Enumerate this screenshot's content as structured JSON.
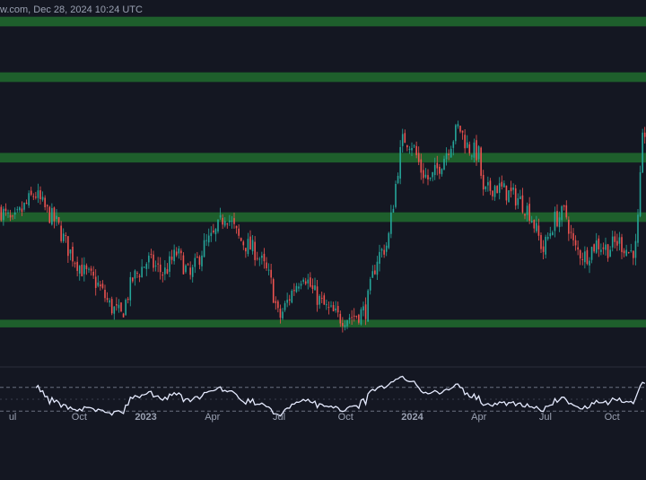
{
  "header": {
    "text": "w.com, Dec 28, 2024 10:24 UTC"
  },
  "colors": {
    "background": "#141722",
    "zone_fill": "#1e5f2c",
    "candle_up": "#26a69a",
    "candle_down": "#ef5350",
    "rsi_line": "#e6ebff",
    "text": "#9aa1b2"
  },
  "chart_data": {
    "type": "candlestick",
    "title": "",
    "xlabel": "",
    "ylabel": "",
    "x_ticks": [
      {
        "label": "ul",
        "month": 7
      },
      {
        "label": "Oct",
        "month": 10
      },
      {
        "label": "2023",
        "month": 13,
        "bold": true
      },
      {
        "label": "Apr",
        "month": 16
      },
      {
        "label": "Jul",
        "month": 19
      },
      {
        "label": "Oct",
        "month": 22
      },
      {
        "label": "2024",
        "month": 25,
        "bold": true
      },
      {
        "label": "Apr",
        "month": 28
      },
      {
        "label": "Jul",
        "month": 31
      },
      {
        "label": "Oct",
        "month": 34
      }
    ],
    "price_path": [
      {
        "m": 6.4,
        "y": 70
      },
      {
        "m": 7.0,
        "y": 62
      },
      {
        "m": 7.6,
        "y": 72
      },
      {
        "m": 8.0,
        "y": 78
      },
      {
        "m": 8.5,
        "y": 69
      },
      {
        "m": 9.0,
        "y": 62
      },
      {
        "m": 9.5,
        "y": 49
      },
      {
        "m": 10.2,
        "y": 37
      },
      {
        "m": 10.8,
        "y": 31
      },
      {
        "m": 11.4,
        "y": 19
      },
      {
        "m": 11.9,
        "y": 14
      },
      {
        "m": 12.4,
        "y": 33
      },
      {
        "m": 13.1,
        "y": 43
      },
      {
        "m": 13.8,
        "y": 36
      },
      {
        "m": 14.4,
        "y": 47
      },
      {
        "m": 15.0,
        "y": 34
      },
      {
        "m": 15.6,
        "y": 50
      },
      {
        "m": 16.1,
        "y": 56
      },
      {
        "m": 16.6,
        "y": 68
      },
      {
        "m": 17.2,
        "y": 54
      },
      {
        "m": 18.0,
        "y": 47
      },
      {
        "m": 18.6,
        "y": 33
      },
      {
        "m": 19.0,
        "y": 12
      },
      {
        "m": 19.6,
        "y": 27
      },
      {
        "m": 20.1,
        "y": 37
      },
      {
        "m": 20.5,
        "y": 27
      },
      {
        "m": 21.1,
        "y": 18
      },
      {
        "m": 21.7,
        "y": 13
      },
      {
        "m": 22.4,
        "y": 14
      },
      {
        "m": 22.9,
        "y": 17
      },
      {
        "m": 23.4,
        "y": 44
      },
      {
        "m": 23.9,
        "y": 52
      },
      {
        "m": 24.4,
        "y": 95
      },
      {
        "m": 24.6,
        "y": 107
      },
      {
        "m": 25.0,
        "y": 104
      },
      {
        "m": 25.4,
        "y": 90
      },
      {
        "m": 25.8,
        "y": 84
      },
      {
        "m": 26.3,
        "y": 94
      },
      {
        "m": 26.8,
        "y": 106
      },
      {
        "m": 27.1,
        "y": 113
      },
      {
        "m": 27.5,
        "y": 102
      },
      {
        "m": 28.0,
        "y": 98
      },
      {
        "m": 28.2,
        "y": 77
      },
      {
        "m": 28.7,
        "y": 82
      },
      {
        "m": 29.3,
        "y": 78
      },
      {
        "m": 29.8,
        "y": 75
      },
      {
        "m": 30.3,
        "y": 68
      },
      {
        "m": 30.9,
        "y": 48
      },
      {
        "m": 31.4,
        "y": 64
      },
      {
        "m": 31.9,
        "y": 68
      },
      {
        "m": 32.3,
        "y": 49
      },
      {
        "m": 32.8,
        "y": 45
      },
      {
        "m": 33.3,
        "y": 52
      },
      {
        "m": 33.8,
        "y": 49
      },
      {
        "m": 34.3,
        "y": 53
      },
      {
        "m": 34.8,
        "y": 47
      },
      {
        "m": 35.1,
        "y": 50
      },
      {
        "m": 35.4,
        "y": 110
      }
    ],
    "zones": [
      {
        "low": 8,
        "high": 12
      },
      {
        "low": 63,
        "high": 68
      },
      {
        "low": 94,
        "high": 99
      },
      {
        "low": 136,
        "high": 141
      },
      {
        "low": 165,
        "high": 170
      }
    ],
    "y_range": [
      0,
      175
    ],
    "x_range": [
      6.43,
      35.53
    ],
    "candle_count": 280,
    "rsi": {
      "range": [
        0,
        100
      ],
      "upper_band": 70,
      "lower_band": 30,
      "mid_line": 50
    }
  }
}
